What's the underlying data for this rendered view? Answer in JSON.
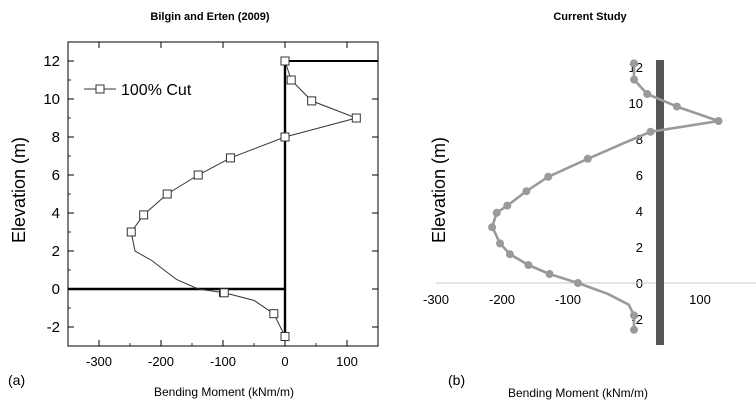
{
  "chart_data": [
    {
      "type": "line",
      "title": "Bilgin and Erten (2009)",
      "xlabel": "Bending Moment (kNm/m)",
      "ylabel": "Elevation (m)",
      "panel_label": "(a)",
      "xlim": [
        -350,
        150
      ],
      "ylim": [
        -3,
        13
      ],
      "x_ticks": [
        -300,
        -200,
        -100,
        0,
        100
      ],
      "y_ticks": [
        -2,
        0,
        2,
        4,
        6,
        8,
        10,
        12
      ],
      "grid": false,
      "legend": "top-left",
      "series": [
        {
          "name": "100% Cut",
          "marker": "open-square",
          "color": "#333333",
          "points": [
            [
              0,
              12
            ],
            [
              10,
              11
            ],
            [
              43,
              9.9
            ],
            [
              115,
              9
            ],
            [
              0,
              8
            ],
            [
              -88,
              6.9
            ],
            [
              -140,
              6
            ],
            [
              -190,
              5
            ],
            [
              -228,
              3.9
            ],
            [
              -248,
              3
            ],
            [
              -242,
              2
            ],
            [
              -215,
              1.5
            ],
            [
              -175,
              0.5
            ],
            [
              -140,
              0
            ],
            [
              -98,
              -0.2
            ],
            [
              -50,
              -0.6
            ],
            [
              -18,
              -1.3
            ],
            [
              0,
              -2.5
            ]
          ],
          "marked_points": [
            [
              0,
              12
            ],
            [
              10,
              11
            ],
            [
              43,
              9.9
            ],
            [
              115,
              9
            ],
            [
              0,
              8
            ],
            [
              -88,
              6.9
            ],
            [
              -140,
              6
            ],
            [
              -190,
              5
            ],
            [
              -228,
              3.9
            ],
            [
              -248,
              3
            ],
            [
              -98,
              -0.2
            ],
            [
              -18,
              -1.3
            ],
            [
              0,
              -2.5
            ]
          ]
        }
      ]
    },
    {
      "type": "line",
      "title": "Current Study",
      "xlabel": "Bending Moment (kNm/m)",
      "ylabel": "Elevation (m)",
      "panel_label": "(b)",
      "xlim": [
        -300,
        130
      ],
      "ylim": [
        -3.5,
        12.5
      ],
      "x_ticks": [
        -300,
        -200,
        -100,
        100
      ],
      "y_ticks": [
        -2,
        0,
        2,
        4,
        6,
        8,
        10,
        12
      ],
      "grid": false,
      "series": [
        {
          "color": "#9a9a9a",
          "marker": "filled-circle",
          "points": [
            [
              0,
              12.2
            ],
            [
              0,
              11.3
            ],
            [
              20,
              10.5
            ],
            [
              65,
              9.8
            ],
            [
              128,
              9
            ],
            [
              25,
              8.4
            ],
            [
              -20,
              7.7
            ],
            [
              -70,
              6.9
            ],
            [
              -130,
              5.9
            ],
            [
              -163,
              5.1
            ],
            [
              -192,
              4.3
            ],
            [
              -208,
              3.9
            ],
            [
              -215,
              3.1
            ],
            [
              -212,
              2.9
            ],
            [
              -203,
              2.2
            ],
            [
              -188,
              1.6
            ],
            [
              -160,
              1
            ],
            [
              -128,
              0.5
            ],
            [
              -85,
              0
            ],
            [
              -40,
              -0.6
            ],
            [
              -8,
              -1.2
            ],
            [
              0,
              -1.8
            ],
            [
              0,
              -2.6
            ]
          ],
          "marked_points": [
            [
              0,
              12.2
            ],
            [
              0,
              11.3
            ],
            [
              20,
              10.5
            ],
            [
              65,
              9.8
            ],
            [
              128,
              9
            ],
            [
              25,
              8.4
            ],
            [
              -70,
              6.9
            ],
            [
              -130,
              5.9
            ],
            [
              -163,
              5.1
            ],
            [
              -192,
              4.3
            ],
            [
              -208,
              3.9
            ],
            [
              -215,
              3.1
            ],
            [
              -203,
              2.2
            ],
            [
              -188,
              1.6
            ],
            [
              -160,
              1
            ],
            [
              -128,
              0.5
            ],
            [
              -85,
              0
            ],
            [
              0,
              -1.8
            ],
            [
              0,
              -2.6
            ]
          ]
        }
      ]
    }
  ]
}
